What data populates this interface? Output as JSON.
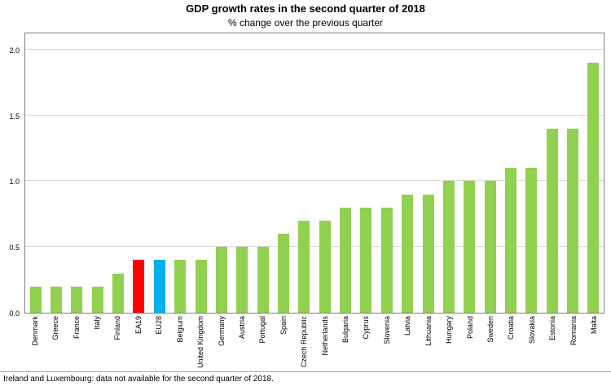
{
  "footnote": "Ireland and Luxembourg: data not available for the second quarter of 2018.",
  "colors": {
    "bar_default": "#92d050",
    "bar_ea19": "#ff0000",
    "bar_eu28": "#00b0f0",
    "grid": "#d9d9d9",
    "plot_border": "#7f7f7f"
  },
  "chart_data": {
    "type": "bar",
    "title": "GDP growth rates in the second quarter of 2018",
    "subtitle": "% change over the previous quarter",
    "categories": [
      "Denmark",
      "Greece",
      "France",
      "Italy",
      "Finland",
      "EA19",
      "EU28",
      "Belgium",
      "United Kingdom",
      "Germany",
      "Austria",
      "Portugal",
      "Spain",
      "Czech Republic",
      "Netherlands",
      "Bulgaria",
      "Cyprus",
      "Slovenia",
      "Latvia",
      "Lithuania",
      "Hungary",
      "Poland",
      "Sweden",
      "Croatia",
      "Slovakia",
      "Estonia",
      "Romania",
      "Malta"
    ],
    "values": [
      0.2,
      0.2,
      0.2,
      0.2,
      0.3,
      0.4,
      0.4,
      0.4,
      0.4,
      0.5,
      0.5,
      0.5,
      0.6,
      0.7,
      0.7,
      0.8,
      0.8,
      0.8,
      0.9,
      0.9,
      1.0,
      1.0,
      1.0,
      1.1,
      1.1,
      1.4,
      1.4,
      1.9
    ],
    "highlight": {
      "EA19": "#ff0000",
      "EU28": "#00b0f0"
    },
    "xlabel": "",
    "ylabel": "",
    "ylim": [
      0,
      2.0
    ],
    "yticks": [
      0.0,
      0.5,
      1.0,
      1.5,
      2.0
    ],
    "grid": true,
    "legend": "none"
  }
}
